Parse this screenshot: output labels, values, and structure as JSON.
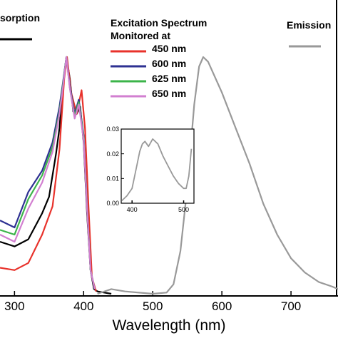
{
  "chart_data": [
    {
      "type": "line",
      "x_label": "Wavelength (nm)",
      "legend_title": [
        "Excitation Spectrum",
        "Monitored at"
      ],
      "xlim": [
        279,
        768
      ],
      "ylim": [
        0,
        1
      ],
      "xticks": [
        300,
        400,
        500,
        600,
        700
      ],
      "series": [
        {
          "name": "sorption",
          "color": "#000000",
          "x": [
            279,
            300,
            320,
            340,
            350,
            360,
            365,
            370,
            375,
            380,
            385,
            390,
            395,
            400,
            405,
            410,
            415,
            420,
            440
          ],
          "values": [
            0.22,
            0.2,
            0.23,
            0.34,
            0.41,
            0.59,
            0.7,
            0.88,
            1.0,
            0.91,
            0.77,
            0.76,
            0.79,
            0.64,
            0.34,
            0.1,
            0.02,
            0.01,
            0.0
          ]
        },
        {
          "name": "450 nm",
          "color": "#e8322b",
          "x": [
            279,
            300,
            320,
            340,
            355,
            365,
            372,
            376,
            382,
            390,
            397,
            402,
            407,
            412,
            418
          ],
          "values": [
            0.11,
            0.1,
            0.13,
            0.25,
            0.37,
            0.61,
            0.91,
            1.0,
            0.85,
            0.76,
            0.86,
            0.7,
            0.37,
            0.07,
            0.01
          ]
        },
        {
          "name": "600 nm",
          "color": "#2e3192",
          "x": [
            279,
            300,
            320,
            340,
            355,
            365,
            370,
            375,
            380,
            387,
            393,
            400,
            405,
            410,
            416
          ],
          "values": [
            0.31,
            0.28,
            0.43,
            0.52,
            0.64,
            0.79,
            0.89,
            1.0,
            0.88,
            0.76,
            0.82,
            0.67,
            0.37,
            0.1,
            0.02
          ]
        },
        {
          "name": "625 nm",
          "color": "#3cb44a",
          "x": [
            279,
            300,
            320,
            340,
            355,
            365,
            370,
            375,
            380,
            387,
            393,
            400,
            405,
            410,
            416
          ],
          "values": [
            0.27,
            0.25,
            0.4,
            0.5,
            0.62,
            0.77,
            0.88,
            1.0,
            0.87,
            0.75,
            0.81,
            0.66,
            0.37,
            0.1,
            0.02
          ]
        },
        {
          "name": "650 nm",
          "color": "#d27fd0",
          "x": [
            279,
            300,
            320,
            340,
            355,
            365,
            370,
            375,
            380,
            387,
            393,
            400,
            405,
            410,
            416
          ],
          "values": [
            0.25,
            0.22,
            0.36,
            0.47,
            0.6,
            0.76,
            0.87,
            1.0,
            0.87,
            0.74,
            0.8,
            0.65,
            0.36,
            0.1,
            0.02
          ]
        },
        {
          "name": "Emission",
          "color": "#999999",
          "x": [
            420,
            440,
            460,
            500,
            520,
            530,
            540,
            550,
            560,
            567,
            573,
            580,
            600,
            620,
            640,
            660,
            680,
            700,
            720,
            740,
            760,
            768
          ],
          "values": [
            0.0,
            0.02,
            0.01,
            0.0,
            0.005,
            0.04,
            0.18,
            0.45,
            0.8,
            0.96,
            1.0,
            0.98,
            0.85,
            0.7,
            0.55,
            0.38,
            0.25,
            0.15,
            0.09,
            0.05,
            0.03,
            0.02
          ]
        }
      ]
    },
    {
      "type": "line",
      "xlim": [
        379,
        520
      ],
      "ylim": [
        0,
        0.03
      ],
      "xticks": [
        400,
        500
      ],
      "yticks": [
        {
          "value": 0,
          "label": "0.00"
        },
        {
          "value": 0.01,
          "label": "0.01"
        },
        {
          "value": 0.02,
          "label": "0.02"
        },
        {
          "value": 0.03,
          "label": "0.03"
        }
      ],
      "series": [
        {
          "color": "#999999",
          "x": [
            380,
            390,
            400,
            408,
            415,
            420,
            425,
            432,
            440,
            450,
            460,
            470,
            480,
            490,
            500,
            505,
            510,
            515
          ],
          "values": [
            0.001,
            0.003,
            0.006,
            0.014,
            0.021,
            0.024,
            0.025,
            0.023,
            0.026,
            0.024,
            0.019,
            0.015,
            0.011,
            0.008,
            0.006,
            0.006,
            0.011,
            0.022
          ]
        }
      ]
    }
  ]
}
